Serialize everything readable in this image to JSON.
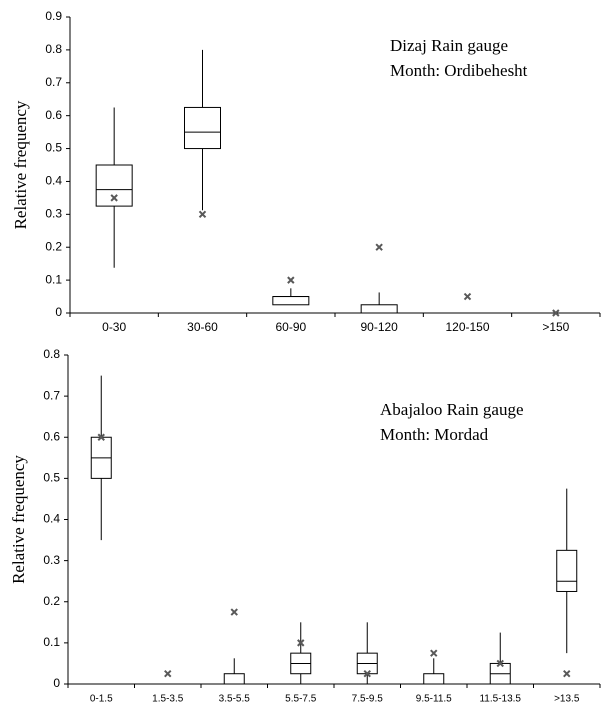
{
  "chart_data": [
    {
      "type": "box",
      "ylabel": "Relative frequency",
      "annotations": [
        "Dizaj Rain gauge",
        "Month: Ordibehesht"
      ],
      "categories": [
        "0-30",
        "30-60",
        "60-90",
        "90-120",
        "120-150",
        ">150"
      ],
      "whislo": [
        0.1375,
        0.3125,
        0.025,
        0,
        0,
        0
      ],
      "q1": [
        0.325,
        0.5,
        0.025,
        0,
        0,
        0
      ],
      "med": [
        0.375,
        0.55,
        0.05,
        0,
        0,
        0
      ],
      "q3": [
        0.45,
        0.625,
        0.05,
        0.025,
        0,
        0
      ],
      "whishi": [
        0.625,
        0.8,
        0.075,
        0.0625,
        0,
        0
      ],
      "observed": [
        0.35,
        0.3,
        0.1,
        0.2,
        0.05,
        0
      ],
      "color": "#000000",
      "marker_color": "#595959",
      "ylim": [
        0,
        0.9
      ],
      "yticks": [
        0,
        0.1,
        0.2,
        0.3,
        0.4,
        0.5,
        0.6,
        0.7,
        0.8,
        0.9
      ],
      "grid": false
    },
    {
      "type": "box",
      "ylabel": "Relative frequency",
      "annotations": [
        "Abajaloo Rain gauge",
        "Month: Mordad"
      ],
      "categories": [
        "0-1.5",
        "1.5-3.5",
        "3.5-5.5",
        "5.5-7.5",
        "7.5-9.5",
        "9.5-11.5",
        "11.5-13.5",
        ">13.5"
      ],
      "whislo": [
        0.35,
        0,
        0,
        0,
        0,
        0,
        0,
        0.075
      ],
      "q1": [
        0.5,
        0,
        0,
        0.025,
        0.025,
        0,
        0,
        0.225
      ],
      "med": [
        0.55,
        0,
        0,
        0.05,
        0.05,
        0,
        0.025,
        0.25
      ],
      "q3": [
        0.6,
        0,
        0.025,
        0.075,
        0.075,
        0.025,
        0.05,
        0.325
      ],
      "whishi": [
        0.75,
        0,
        0.0625,
        0.15,
        0.15,
        0.0625,
        0.125,
        0.475
      ],
      "observed": [
        0.6,
        0.025,
        0.175,
        0.1,
        0.025,
        0.075,
        0.05,
        0.025
      ],
      "color": "#000000",
      "marker_color": "#595959",
      "ylim": [
        0,
        0.8
      ],
      "yticks": [
        0,
        0.1,
        0.2,
        0.3,
        0.4,
        0.5,
        0.6,
        0.7,
        0.8
      ],
      "grid": false
    }
  ]
}
